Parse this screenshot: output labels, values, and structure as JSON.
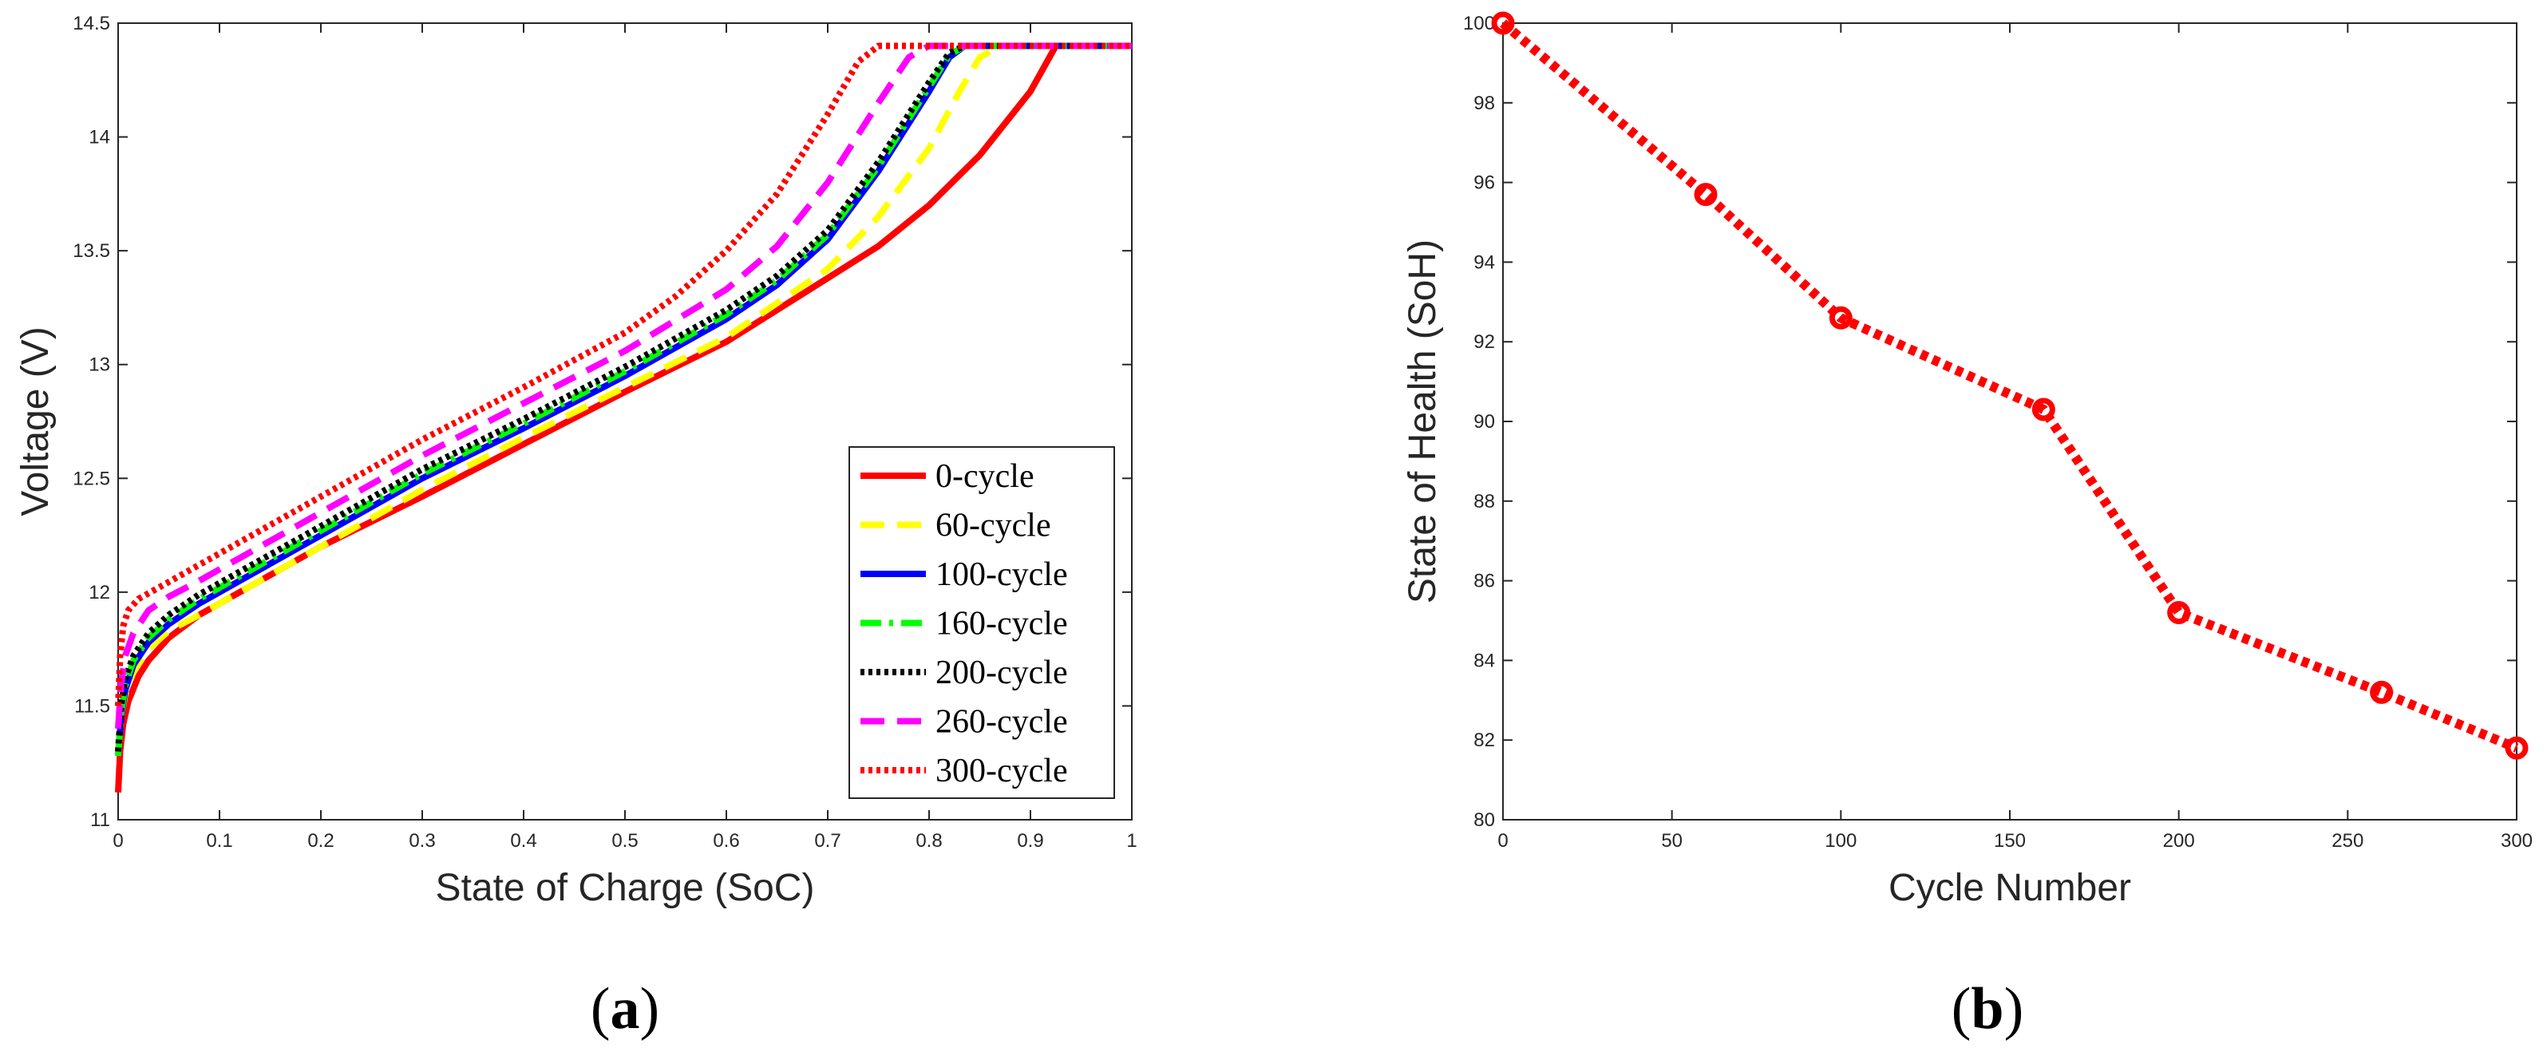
{
  "chart_data": [
    {
      "type": "line",
      "panel_label": "(a)",
      "panel_letter": "a",
      "xlabel": "State of Charge (SoC)",
      "ylabel": "Voltage (V)",
      "xlim": [
        0,
        1
      ],
      "ylim": [
        11,
        14.5
      ],
      "xticks": [
        0,
        0.1,
        0.2,
        0.3,
        0.4,
        0.5,
        0.6,
        0.7,
        0.8,
        0.9,
        1
      ],
      "xtick_labels": [
        "0",
        "0.1",
        "0.2",
        "0.3",
        "0.4",
        "0.5",
        "0.6",
        "0.7",
        "0.8",
        "0.9",
        "1"
      ],
      "yticks": [
        11,
        11.5,
        12,
        12.5,
        13,
        13.5,
        14,
        14.5
      ],
      "ytick_labels": [
        "11",
        "11.5",
        "12",
        "12.5",
        "13",
        "13.5",
        "14",
        "14.5"
      ],
      "grid": false,
      "legend_position": "bottom-right",
      "series": [
        {
          "name": "0-cycle",
          "color": "#ff0000",
          "style": "solid",
          "x": [
            0,
            0.002,
            0.005,
            0.01,
            0.02,
            0.03,
            0.05,
            0.08,
            0.1,
            0.2,
            0.3,
            0.4,
            0.5,
            0.6,
            0.7,
            0.75,
            0.8,
            0.85,
            0.9,
            0.925,
            1.0
          ],
          "y": [
            11.12,
            11.3,
            11.42,
            11.52,
            11.63,
            11.7,
            11.8,
            11.9,
            11.95,
            12.2,
            12.42,
            12.65,
            12.88,
            13.1,
            13.38,
            13.52,
            13.7,
            13.92,
            14.2,
            14.4,
            14.4
          ]
        },
        {
          "name": "60-cycle",
          "color": "#ffff00",
          "style": "dashed",
          "x": [
            0,
            0.003,
            0.007,
            0.015,
            0.03,
            0.05,
            0.08,
            0.1,
            0.2,
            0.3,
            0.4,
            0.5,
            0.6,
            0.7,
            0.75,
            0.8,
            0.83,
            0.85,
            0.87,
            1.0
          ],
          "y": [
            11.3,
            11.45,
            11.55,
            11.65,
            11.75,
            11.83,
            11.9,
            11.95,
            12.2,
            12.45,
            12.68,
            12.9,
            13.12,
            13.42,
            13.65,
            13.95,
            14.2,
            14.35,
            14.4,
            14.4
          ]
        },
        {
          "name": "100-cycle",
          "color": "#0000ff",
          "style": "solid",
          "x": [
            0,
            0.003,
            0.007,
            0.015,
            0.03,
            0.05,
            0.08,
            0.1,
            0.2,
            0.3,
            0.4,
            0.5,
            0.6,
            0.65,
            0.7,
            0.75,
            0.8,
            0.82,
            0.835,
            1.0
          ],
          "y": [
            11.28,
            11.45,
            11.57,
            11.68,
            11.78,
            11.86,
            11.95,
            12.0,
            12.25,
            12.5,
            12.72,
            12.95,
            13.2,
            13.35,
            13.55,
            13.85,
            14.2,
            14.35,
            14.4,
            14.4
          ]
        },
        {
          "name": "160-cycle",
          "color": "#00ff00",
          "style": "dashdot",
          "x": [
            0,
            0.003,
            0.007,
            0.015,
            0.03,
            0.05,
            0.08,
            0.1,
            0.2,
            0.3,
            0.4,
            0.5,
            0.6,
            0.65,
            0.7,
            0.75,
            0.8,
            0.82,
            0.835,
            1.0
          ],
          "y": [
            11.28,
            11.47,
            11.59,
            11.7,
            11.8,
            11.88,
            11.97,
            12.02,
            12.27,
            12.52,
            12.74,
            12.97,
            13.22,
            13.37,
            13.57,
            13.87,
            14.22,
            14.36,
            14.4,
            14.4
          ]
        },
        {
          "name": "200-cycle",
          "color": "#000000",
          "style": "dotted",
          "x": [
            0,
            0.003,
            0.007,
            0.015,
            0.03,
            0.05,
            0.08,
            0.1,
            0.2,
            0.3,
            0.4,
            0.5,
            0.6,
            0.65,
            0.7,
            0.75,
            0.8,
            0.82,
            0.835,
            1.0
          ],
          "y": [
            11.3,
            11.5,
            11.62,
            11.72,
            11.82,
            11.9,
            11.99,
            12.04,
            12.29,
            12.54,
            12.76,
            12.99,
            13.24,
            13.39,
            13.59,
            13.89,
            14.24,
            14.37,
            14.4,
            14.4
          ]
        },
        {
          "name": "260-cycle",
          "color": "#ff00ff",
          "style": "dashed",
          "x": [
            0,
            0.003,
            0.007,
            0.015,
            0.03,
            0.05,
            0.08,
            0.1,
            0.2,
            0.3,
            0.4,
            0.5,
            0.6,
            0.65,
            0.7,
            0.75,
            0.78,
            0.8,
            1.0
          ],
          "y": [
            11.4,
            11.6,
            11.72,
            11.82,
            11.92,
            11.98,
            12.05,
            12.1,
            12.35,
            12.6,
            12.83,
            13.06,
            13.33,
            13.52,
            13.8,
            14.15,
            14.35,
            14.4,
            14.4
          ]
        },
        {
          "name": "300-cycle",
          "color": "#ff0000",
          "style": "dotted",
          "x": [
            0,
            0.002,
            0.005,
            0.01,
            0.02,
            0.04,
            0.06,
            0.1,
            0.2,
            0.3,
            0.4,
            0.5,
            0.55,
            0.6,
            0.65,
            0.7,
            0.73,
            0.75,
            1.0
          ],
          "y": [
            11.5,
            11.72,
            11.85,
            11.92,
            11.97,
            12.02,
            12.07,
            12.17,
            12.42,
            12.67,
            12.9,
            13.14,
            13.3,
            13.5,
            13.75,
            14.1,
            14.33,
            14.4,
            14.4
          ]
        }
      ]
    },
    {
      "type": "line",
      "panel_label": "(b)",
      "panel_letter": "b",
      "xlabel": "Cycle Number",
      "ylabel": "State of Health (SoH)",
      "xlim": [
        0,
        300
      ],
      "ylim": [
        80,
        100
      ],
      "xticks": [
        0,
        50,
        100,
        150,
        200,
        250,
        300
      ],
      "xtick_labels": [
        "0",
        "50",
        "100",
        "150",
        "200",
        "250",
        "300"
      ],
      "yticks": [
        80,
        82,
        84,
        86,
        88,
        90,
        92,
        94,
        96,
        98,
        100
      ],
      "ytick_labels": [
        "80",
        "82",
        "84",
        "86",
        "88",
        "90",
        "92",
        "94",
        "96",
        "98",
        "100"
      ],
      "grid": false,
      "series": [
        {
          "name": "SoH",
          "color": "#ff0000",
          "style": "dotted",
          "marker": "circle",
          "x": [
            0,
            60,
            100,
            160,
            200,
            260,
            300
          ],
          "y": [
            100,
            95.7,
            92.6,
            90.3,
            85.2,
            83.2,
            81.8
          ]
        }
      ]
    }
  ]
}
